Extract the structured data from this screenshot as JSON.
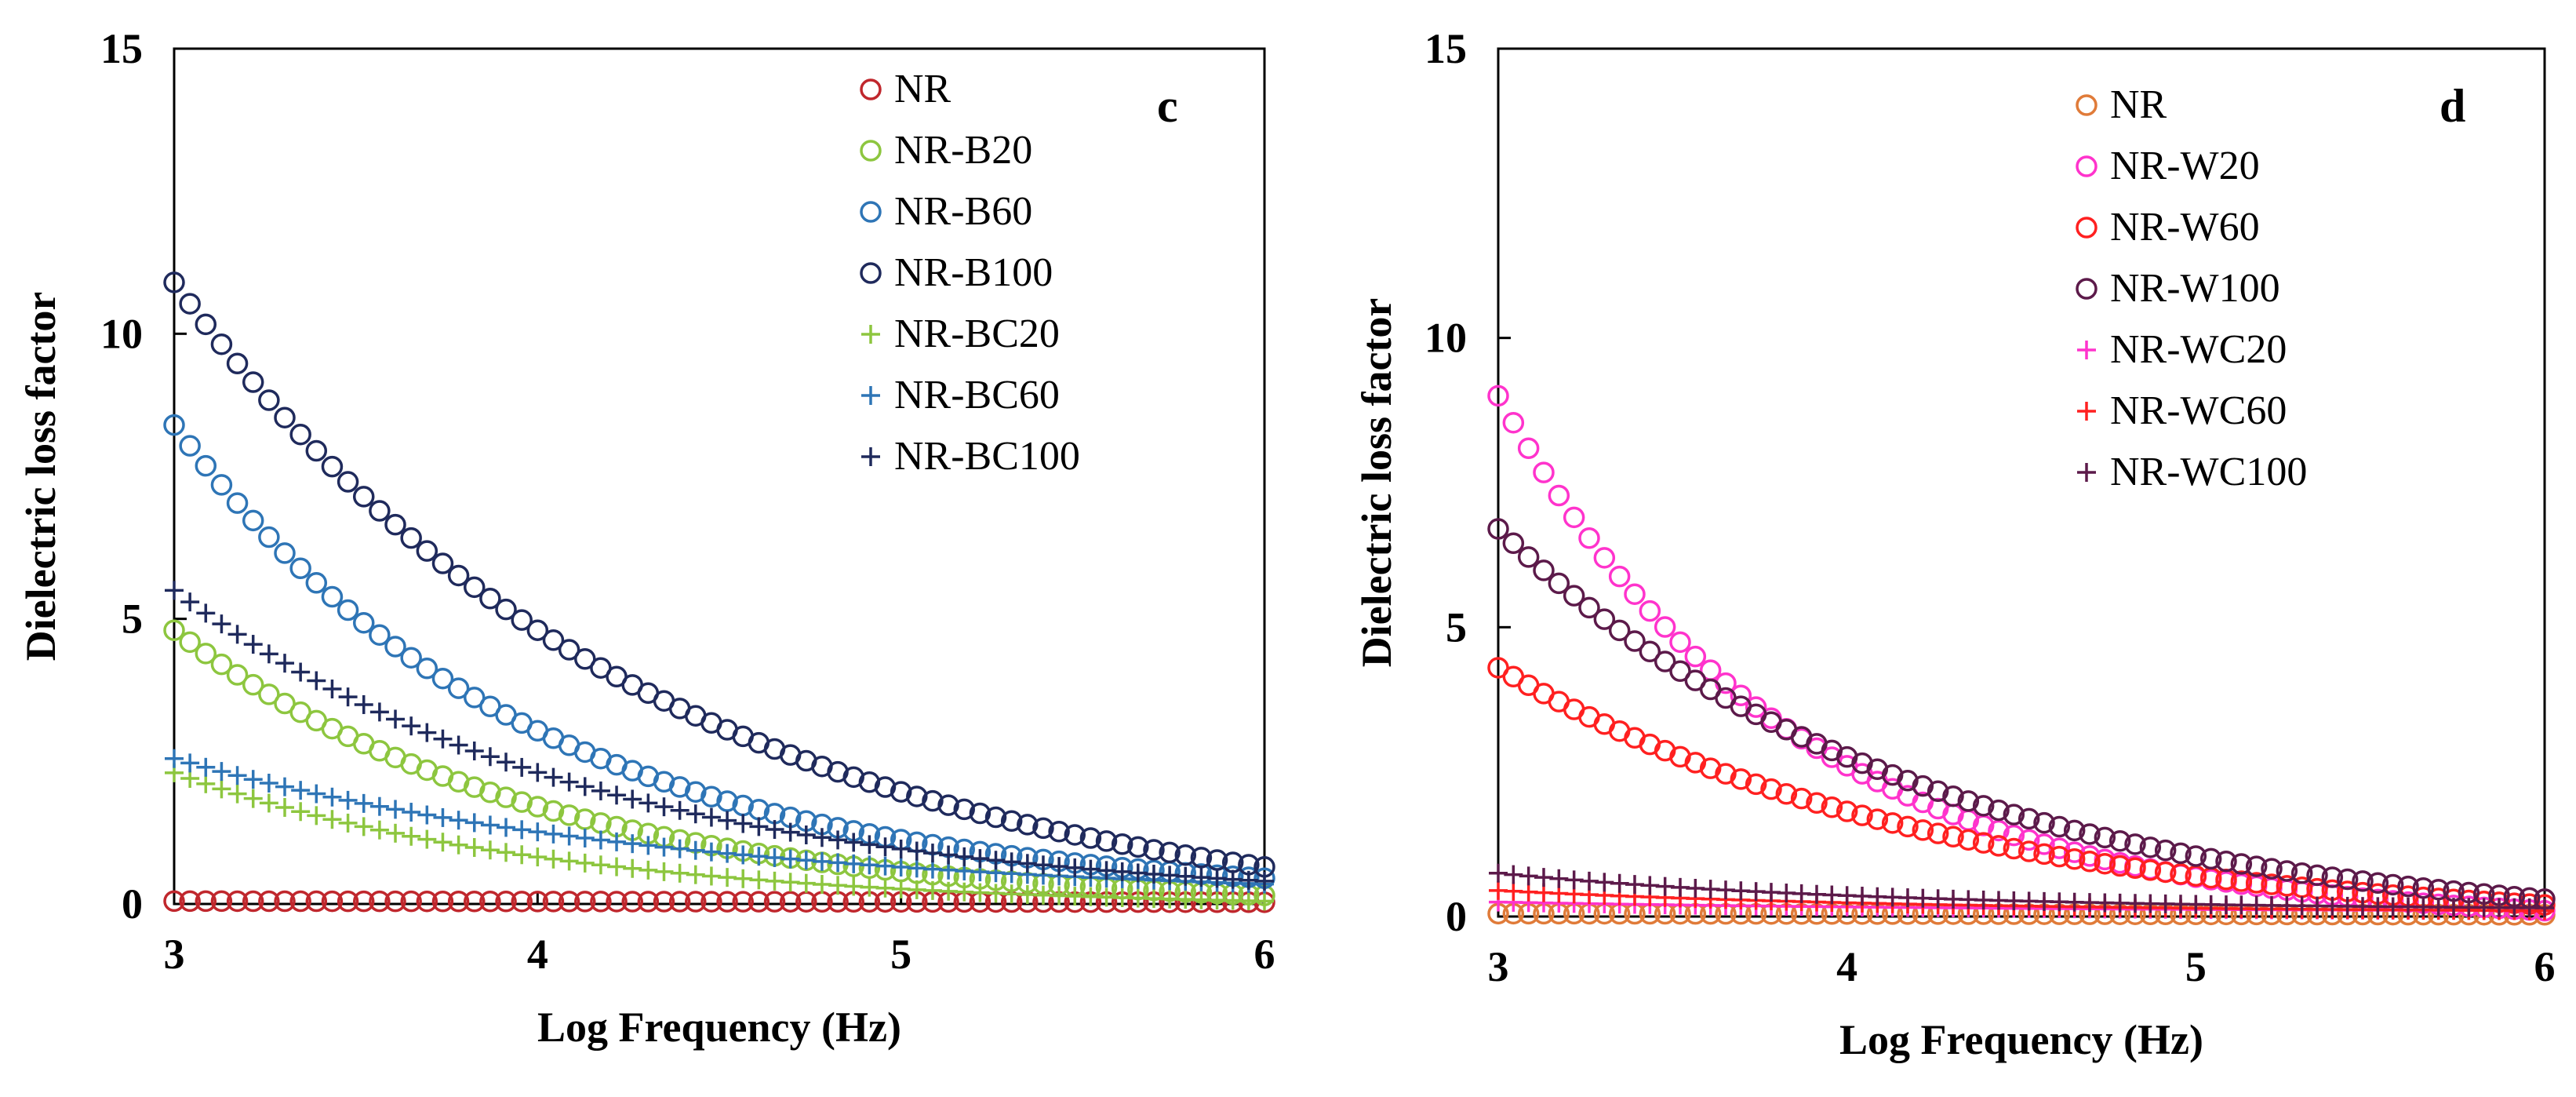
{
  "chart_data": [
    {
      "type": "scatter",
      "panel_label": "c",
      "xlabel": "Log Frequency (Hz)",
      "ylabel": "Dielectric loss factor",
      "xlim": [
        3,
        6
      ],
      "ylim": [
        0,
        15
      ],
      "xticks": [
        "3",
        "4",
        "5",
        "6"
      ],
      "yticks": [
        "0",
        "5",
        "10",
        "15"
      ],
      "legend_position": "top-right",
      "series": [
        {
          "name": "NR",
          "marker": "circle",
          "color": "#c0272d",
          "start": 0.05,
          "end": 0.03,
          "decay": 0
        },
        {
          "name": "NR-B20",
          "marker": "circle",
          "color": "#8dc63f",
          "start": 4.8,
          "end": 0.15,
          "decay": 1.5
        },
        {
          "name": "NR-B60",
          "marker": "circle",
          "color": "#2e75b6",
          "start": 8.4,
          "end": 0.45,
          "decay": 1.55
        },
        {
          "name": "NR-B100",
          "marker": "circle",
          "color": "#1f2a5c",
          "start": 10.9,
          "end": 0.65,
          "decay": 1.15
        },
        {
          "name": "NR-BC20",
          "marker": "plus",
          "color": "#8dc63f",
          "start": 2.3,
          "end": 0.05,
          "decay": 1.45
        },
        {
          "name": "NR-BC60",
          "marker": "plus",
          "color": "#2e75b6",
          "start": 2.55,
          "end": 0.35,
          "decay": 1.1
        },
        {
          "name": "NR-BC100",
          "marker": "plus",
          "color": "#1f2a5c",
          "start": 5.5,
          "end": 0.4,
          "decay": 1.3
        }
      ]
    },
    {
      "type": "scatter",
      "panel_label": "d",
      "xlabel": "Log Frequency (Hz)",
      "ylabel": "Dielectric loss factor",
      "xlim": [
        3,
        6
      ],
      "ylim": [
        0,
        15
      ],
      "xticks": [
        "3",
        "4",
        "5",
        "6"
      ],
      "yticks": [
        "0",
        "5",
        "10",
        "15"
      ],
      "legend_position": "top-right",
      "series": [
        {
          "name": "NR",
          "marker": "circle",
          "color": "#e07b39",
          "start": 0.05,
          "end": 0.03,
          "decay": 0
        },
        {
          "name": "NR-W20",
          "marker": "circle",
          "color": "#ff33cc",
          "start": 9.0,
          "end": 0.1,
          "decay": 1.8
        },
        {
          "name": "NR-W60",
          "marker": "circle",
          "color": "#ff2020",
          "start": 4.3,
          "end": 0.2,
          "decay": 1.2
        },
        {
          "name": "NR-W100",
          "marker": "circle",
          "color": "#5c1a4a",
          "start": 6.7,
          "end": 0.3,
          "decay": 1.25
        },
        {
          "name": "NR-WC20",
          "marker": "plus",
          "color": "#ff33cc",
          "start": 0.25,
          "end": 0.1,
          "decay": 1.0
        },
        {
          "name": "NR-WC60",
          "marker": "plus",
          "color": "#ff2020",
          "start": 0.45,
          "end": 0.1,
          "decay": 1.2
        },
        {
          "name": "NR-WC100",
          "marker": "plus",
          "color": "#5c1a4a",
          "start": 0.75,
          "end": 0.15,
          "decay": 1.4
        }
      ]
    }
  ]
}
